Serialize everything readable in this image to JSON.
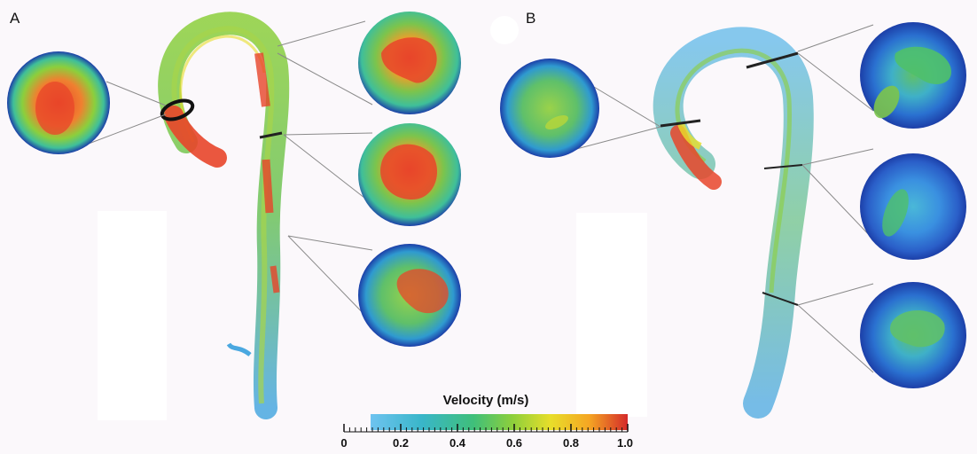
{
  "panels": [
    {
      "label": "A"
    },
    {
      "label": "B"
    }
  ],
  "colorbar": {
    "title": "Velocity (m/s)",
    "ticks": [
      "0",
      "0.2",
      "0.4",
      "0.6",
      "0.8",
      "1.0"
    ],
    "range": [
      0,
      1.0
    ],
    "colors": [
      "#6ec3f0",
      "#39b6c9",
      "#3fbf7a",
      "#8ccf3c",
      "#e8de2a",
      "#f5a623",
      "#e8452a",
      "#d42a2a"
    ]
  },
  "colors": {
    "background": "#fbf8fb",
    "vessel_blue": "#4aa8e0",
    "vessel_green": "#7cc44c",
    "high_velocity_red": "#e8452a",
    "disc_edge_blue": "#1c3fa8"
  }
}
